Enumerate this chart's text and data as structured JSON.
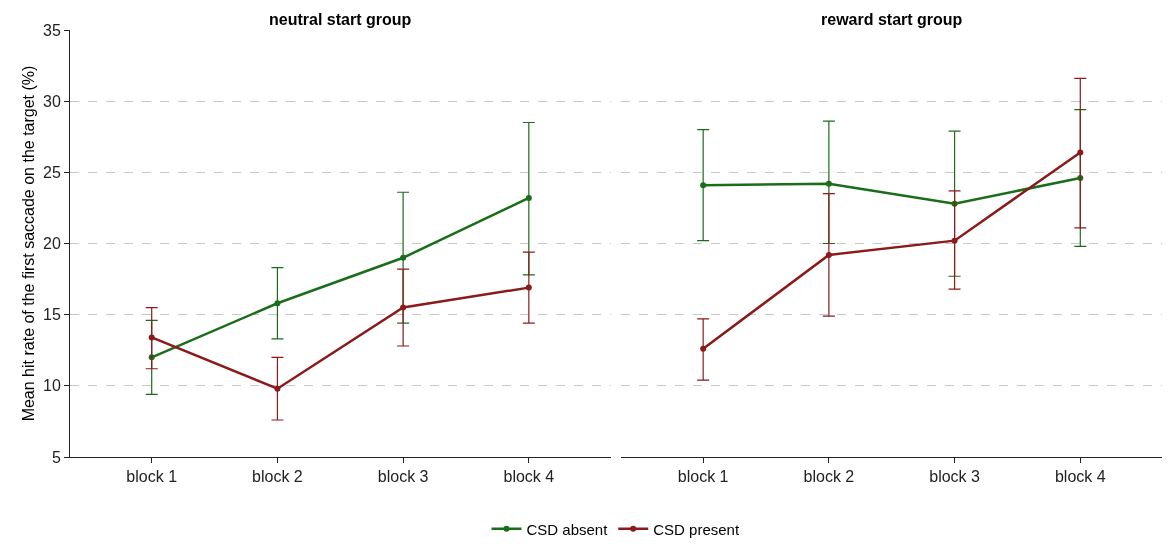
{
  "chart_data": [
    {
      "type": "line",
      "title": "neutral start group",
      "ylabel": "Mean hit rate of the first saccade on the target (%)",
      "categories": [
        "block 1",
        "block 2",
        "block 3",
        "block 4"
      ],
      "ylim": [
        5,
        35
      ],
      "yticks": [
        5,
        10,
        15,
        20,
        25,
        30,
        35
      ],
      "grid": "y",
      "legend": "bottom",
      "marker": "circle",
      "line_style": "solid",
      "series": [
        {
          "name": "CSD absent",
          "color": "#1a6e1a",
          "values": [
            12.0,
            15.8,
            19.0,
            23.2
          ],
          "errors": [
            [
              9.4,
              14.6
            ],
            [
              13.3,
              18.3
            ],
            [
              14.4,
              23.6
            ],
            [
              17.8,
              28.5
            ]
          ]
        },
        {
          "name": "CSD present",
          "color": "#8b1a1a",
          "values": [
            13.4,
            9.8,
            15.5,
            16.9
          ],
          "errors": [
            [
              11.2,
              15.5
            ],
            [
              7.6,
              12.0
            ],
            [
              12.8,
              18.2
            ],
            [
              14.4,
              19.4
            ]
          ]
        }
      ]
    },
    {
      "type": "line",
      "title": "reward start group",
      "categories": [
        "block 1",
        "block 2",
        "block 3",
        "block 4"
      ],
      "ylim": [
        5,
        35
      ],
      "yticks": [
        5,
        10,
        15,
        20,
        25,
        30,
        35
      ],
      "tick_labels": "x",
      "grid": "y",
      "legend": "bottom",
      "marker": "circle",
      "line_style": "solid",
      "series": [
        {
          "name": "CSD absent",
          "color": "#1a6e1a",
          "values": [
            24.1,
            24.2,
            22.8,
            24.6
          ],
          "errors": [
            [
              20.2,
              28.0
            ],
            [
              20.0,
              28.6
            ],
            [
              17.7,
              27.9
            ],
            [
              19.8,
              29.4
            ]
          ]
        },
        {
          "name": "CSD present",
          "color": "#8b1a1a",
          "values": [
            12.6,
            19.2,
            20.2,
            26.4
          ],
          "errors": [
            [
              10.4,
              14.7
            ],
            [
              14.9,
              23.5
            ],
            [
              16.8,
              23.7
            ],
            [
              21.1,
              31.6
            ]
          ]
        }
      ]
    }
  ]
}
